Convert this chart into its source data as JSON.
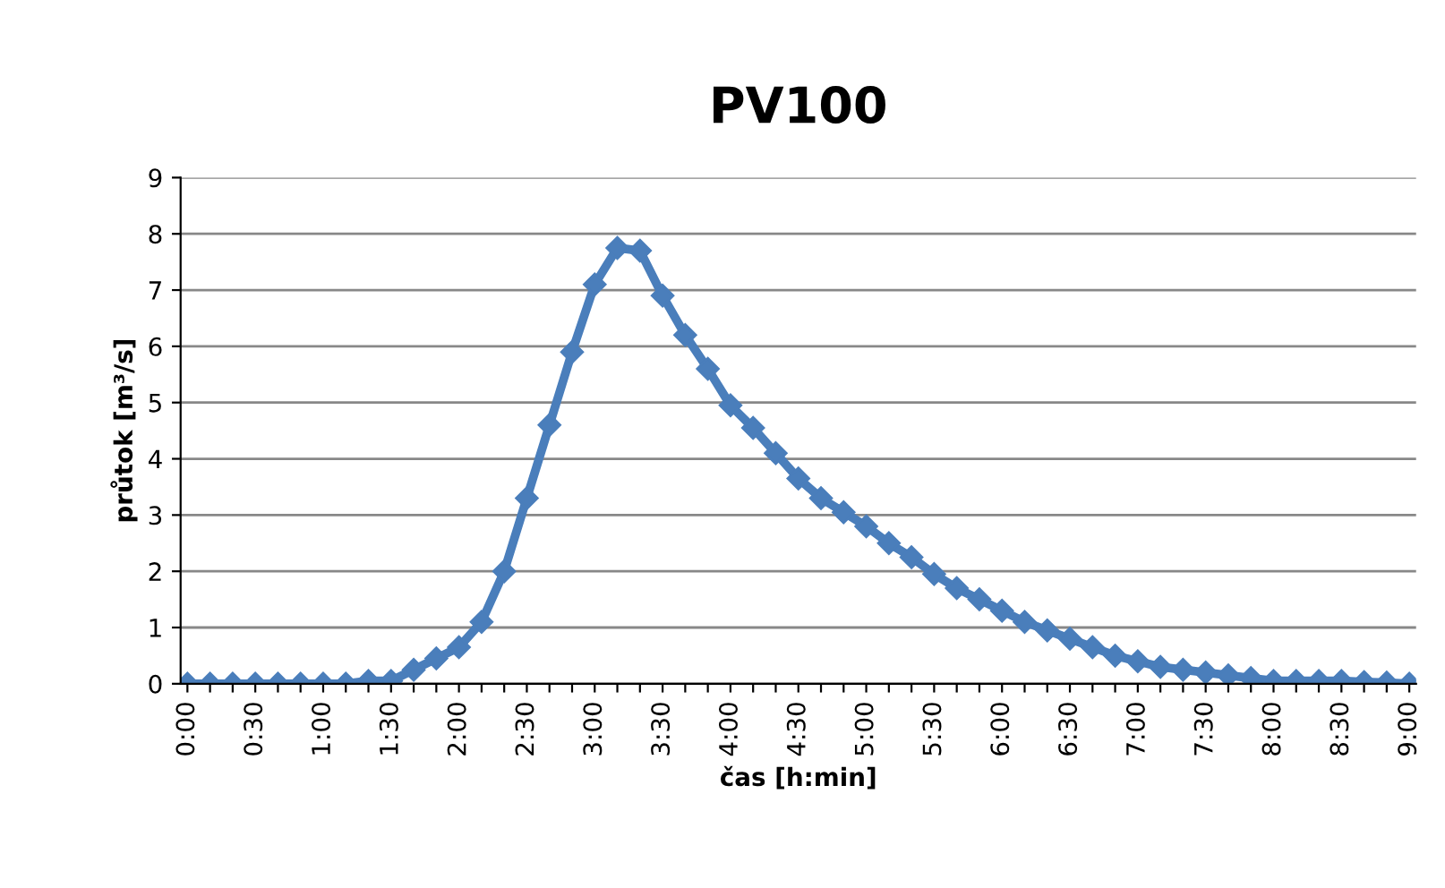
{
  "chart_data": {
    "type": "line",
    "title": "PV100",
    "xlabel": "čas [h:min]",
    "ylabel": "průtok [m³/s]",
    "categories": [
      "0:00",
      null,
      null,
      "0:30",
      null,
      null,
      "1:00",
      null,
      null,
      "1:30",
      null,
      null,
      "2:00",
      null,
      null,
      "2:30",
      null,
      null,
      "3:00",
      null,
      null,
      "3:30",
      null,
      null,
      "4:00",
      null,
      null,
      "4:30",
      null,
      null,
      "5:00",
      null,
      null,
      "5:30",
      null,
      null,
      "6:00",
      null,
      null,
      "6:30",
      null,
      null,
      "7:00",
      null,
      null,
      "7:30",
      null,
      null,
      "8:00",
      null,
      null,
      "8:30",
      null,
      null,
      "9:00"
    ],
    "series": [
      {
        "color": "#4a7ebb",
        "values": [
          0,
          0,
          0,
          0,
          0,
          0,
          0,
          0,
          0.05,
          0.05,
          0.25,
          0.45,
          0.65,
          1.1,
          2.0,
          3.3,
          4.6,
          5.9,
          7.1,
          7.75,
          7.7,
          6.9,
          6.2,
          5.6,
          4.95,
          4.55,
          4.1,
          3.65,
          3.3,
          3.05,
          2.8,
          2.5,
          2.25,
          1.95,
          1.7,
          1.5,
          1.3,
          1.1,
          0.95,
          0.8,
          0.65,
          0.5,
          0.4,
          0.3,
          0.25,
          0.2,
          0.15,
          0.1,
          0.05,
          0.05,
          0.05,
          0.05,
          0.03,
          0.02,
          0
        ]
      }
    ],
    "ylim": [
      0,
      9
    ],
    "yticks": [
      0,
      1,
      2,
      3,
      4,
      5,
      6,
      7,
      8,
      9
    ],
    "grid": "y",
    "marker": "diamond",
    "line_style": "solid",
    "legend": false
  }
}
